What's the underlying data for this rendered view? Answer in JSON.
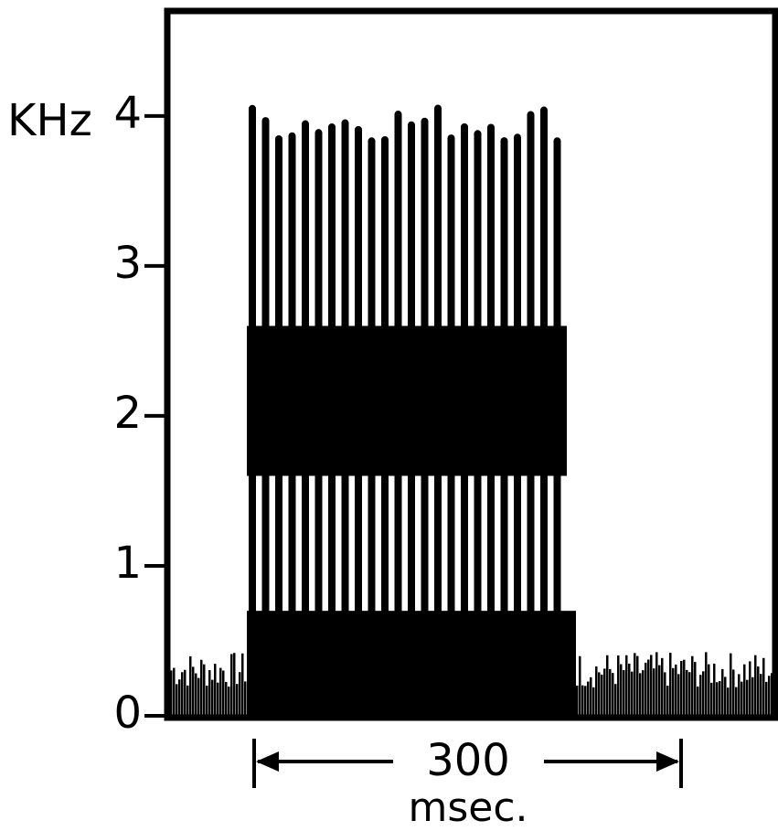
{
  "chart_data": {
    "type": "spectrogram",
    "ylabel": "KHz",
    "ylim": [
      0,
      4.7
    ],
    "yticks": [
      0,
      1,
      2,
      3,
      4
    ],
    "scale_bar": {
      "value": 300,
      "unit": "msec."
    },
    "color": "#000000"
  }
}
